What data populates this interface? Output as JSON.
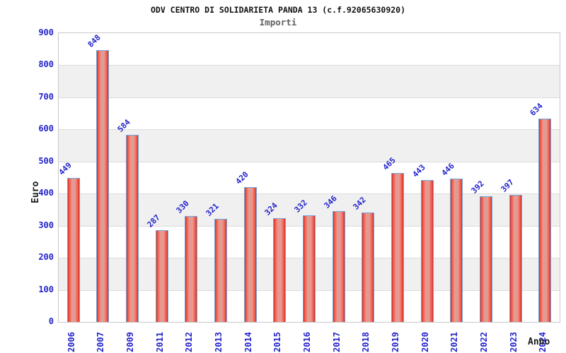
{
  "chart_data": {
    "type": "bar",
    "title": "ODV CENTRO DI SOLIDARIETA PANDA 13 (c.f.92065630920)",
    "subtitle": "Importi",
    "xlabel": "Anno",
    "ylabel": "Euro",
    "categories": [
      "2006",
      "2007",
      "2009",
      "2011",
      "2012",
      "2013",
      "2014",
      "2015",
      "2016",
      "2017",
      "2018",
      "2019",
      "2020",
      "2021",
      "2022",
      "2023",
      "2024"
    ],
    "values": [
      449,
      848,
      584,
      287,
      330,
      321,
      420,
      324,
      332,
      346,
      342,
      465,
      443,
      446,
      392,
      397,
      634
    ],
    "ylim": [
      0,
      900
    ],
    "yticks": [
      900,
      800,
      700,
      600,
      500,
      400,
      300,
      200,
      100,
      0
    ],
    "grid": "alternating horizontal gray bands every 100 units with thin gridlines",
    "legend": "none",
    "bar_value_label_rotation_deg": -45,
    "x_tick_rotation_deg": -90
  },
  "colors": {
    "bar_edge": "#d62a20",
    "bar_mid": "#ee5a49",
    "bar_light": "#f29a90",
    "bar_center": "#c9a09c",
    "bar_border": "#6fa8dc",
    "label_blue": "#2323cc",
    "band_gray": "#f0f0f0",
    "grid_line": "#dcdcdc",
    "plot_border": "#c8c8c8",
    "title_color": "#111111",
    "subtitle_color": "#5f5f5f",
    "axis_title_color": "#1a1a1a",
    "background": "#ffffff"
  }
}
